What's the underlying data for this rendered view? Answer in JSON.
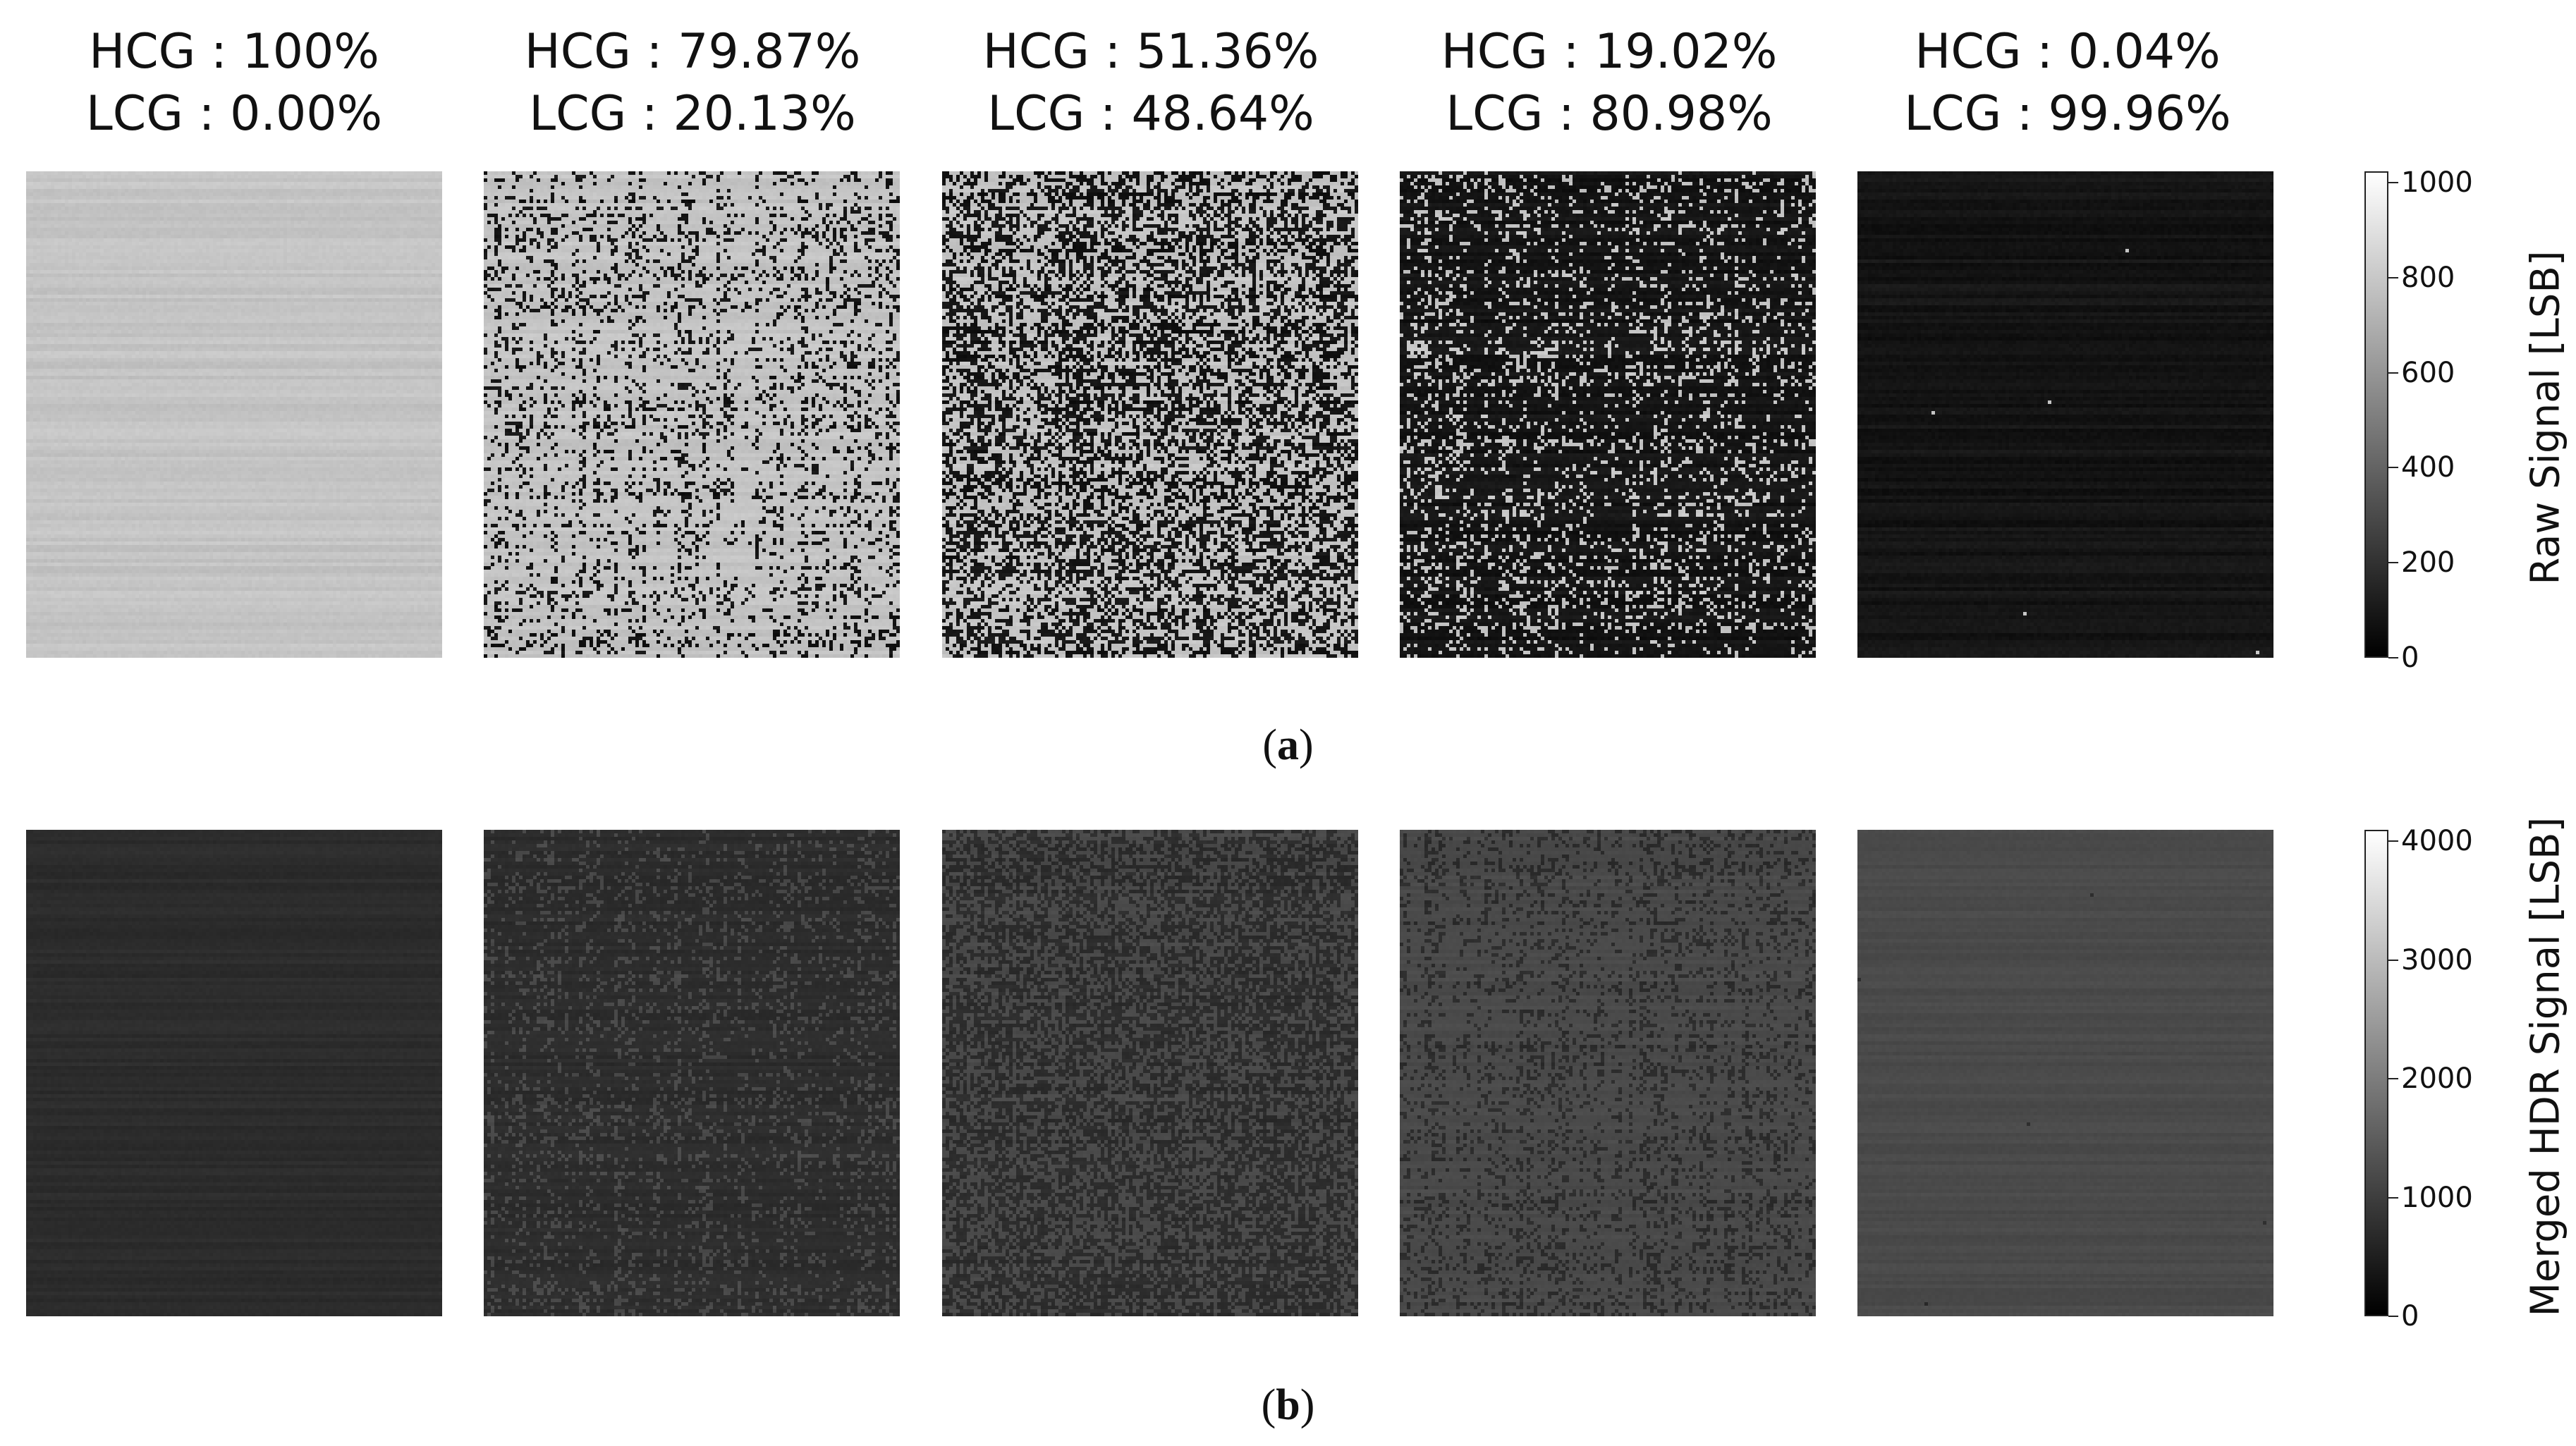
{
  "columns": [
    {
      "hcg": "HCG : 100%",
      "lcg": "LCG : 0.00%",
      "hcg_fraction": 1.0
    },
    {
      "hcg": "HCG : 79.87%",
      "lcg": "LCG : 20.13%",
      "hcg_fraction": 0.7987
    },
    {
      "hcg": "HCG : 51.36%",
      "lcg": "LCG : 48.64%",
      "hcg_fraction": 0.5136
    },
    {
      "hcg": "HCG : 19.02%",
      "lcg": "LCG : 80.98%",
      "hcg_fraction": 0.1902
    },
    {
      "hcg": "HCG : 0.04%",
      "lcg": "LCG : 99.96%",
      "hcg_fraction": 0.0004
    }
  ],
  "panel_a": {
    "label_open": "(",
    "label_letter": "a",
    "label_close": ")",
    "colorbar_title": "Raw Signal [LSB]",
    "colorbar_range": [
      0,
      1024
    ],
    "colorbar_ticks": [
      "0",
      "200",
      "400",
      "600",
      "800",
      "1000"
    ],
    "colorbar_tick_values": [
      0,
      200,
      400,
      600,
      800,
      1000
    ]
  },
  "panel_b": {
    "label_open": "(",
    "label_letter": "b",
    "label_close": ")",
    "colorbar_title": "Merged HDR Signal [LSB]",
    "colorbar_range": [
      0,
      4096
    ],
    "colorbar_ticks": [
      "0",
      "1000",
      "2000",
      "3000",
      "4000"
    ],
    "colorbar_tick_values": [
      0,
      1000,
      2000,
      3000,
      4000
    ]
  },
  "colors": {
    "hcg_raw_level": "#c4c4c4",
    "lcg_raw_level": "#141414",
    "hcg_merged_level": "#2c2c2c",
    "lcg_merged_level": "#4a4a4a"
  }
}
